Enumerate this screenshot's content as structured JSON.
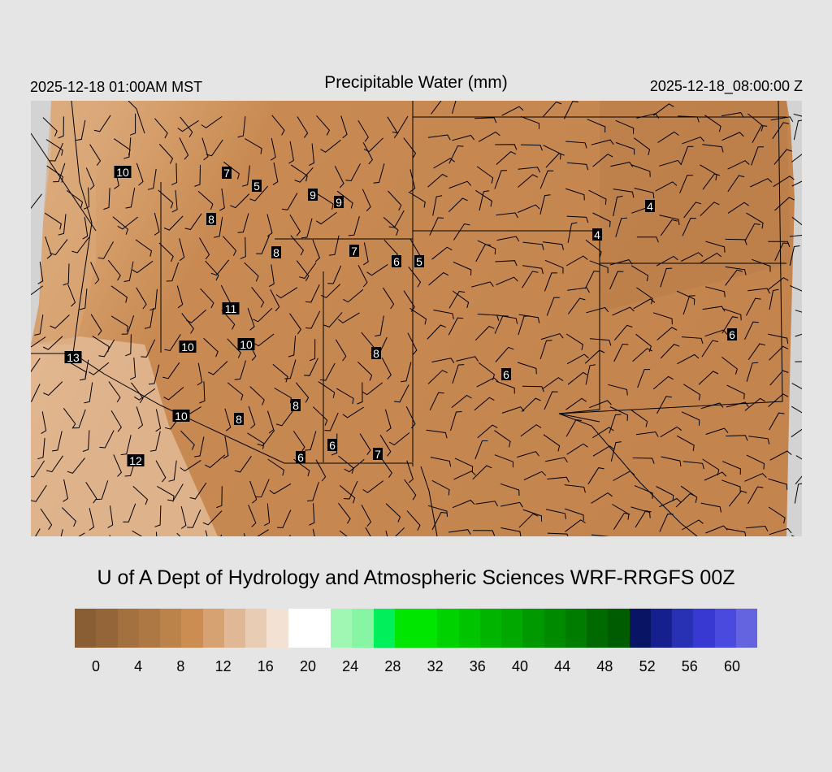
{
  "header": {
    "left_time": "2025-12-18 01:00AM MST",
    "title": "Precipitable Water (mm)",
    "right_time": "2025-12-18_08:00:00 Z"
  },
  "credit": "U of A Dept of Hydrology and Atmospheric Sciences WRF-RRGFS 00Z",
  "map": {
    "field": "precipitable water",
    "ocean_color": "#d3d3d3",
    "base_color": "#c88a52",
    "station_values": [
      "10",
      "7",
      "5",
      "9",
      "9",
      "8",
      "8",
      "7",
      "6",
      "5",
      "4",
      "4",
      "11",
      "10",
      "10",
      "13",
      "8",
      "6",
      "6",
      "8",
      "10",
      "8",
      "6",
      "6",
      "7",
      "12"
    ]
  },
  "colorbar": {
    "colors": [
      "#8a5e34",
      "#936538",
      "#a3703f",
      "#ad7843",
      "#bb8249",
      "#cc8d52",
      "#d6a272",
      "#e0b896",
      "#e8cdb4",
      "#f3e1d3",
      "#ffffff",
      "#ffffff",
      "#a0f7b4",
      "#88f5a4",
      "#00ef5a",
      "#00e600",
      "#00e600",
      "#00d200",
      "#00c400",
      "#00b400",
      "#00a800",
      "#009800",
      "#008a00",
      "#007c00",
      "#006a00",
      "#005c00",
      "#0a1464",
      "#15208e",
      "#2830b4",
      "#3838d2",
      "#4a4ade",
      "#6464e0"
    ],
    "tick_labels": [
      "0",
      "4",
      "8",
      "12",
      "16",
      "20",
      "24",
      "28",
      "32",
      "36",
      "40",
      "44",
      "48",
      "52",
      "56",
      "60"
    ]
  }
}
